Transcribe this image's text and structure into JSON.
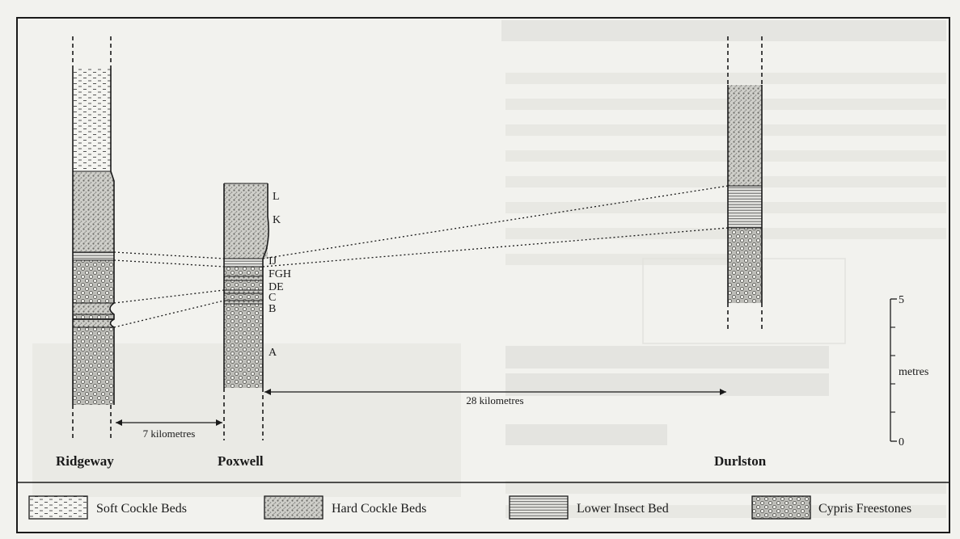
{
  "sections": [
    {
      "id": "ridgeway",
      "label": "Ridgeway"
    },
    {
      "id": "poxwell",
      "label": "Poxwell"
    },
    {
      "id": "durlston",
      "label": "Durlston"
    }
  ],
  "bed_letters": [
    "L",
    "K",
    "IJ",
    "FGH",
    "DE",
    "C",
    "B",
    "A"
  ],
  "distances": {
    "ridgeway_poxwell": "7 kilometres",
    "poxwell_durlston": "28 kilometres"
  },
  "scale": {
    "top": "5",
    "bottom": "0",
    "unit": "metres"
  },
  "legend": [
    {
      "pattern": "soft",
      "label": "Soft Cockle Beds"
    },
    {
      "pattern": "hard",
      "label": "Hard Cockle Beds"
    },
    {
      "pattern": "insect",
      "label": "Lower Insect Bed"
    },
    {
      "pattern": "cypris",
      "label": "Cypris Freestones"
    }
  ],
  "colors": {
    "background": "#f2f2ee",
    "ink": "#1a1a1a",
    "bleed": "#d9d9d4"
  }
}
